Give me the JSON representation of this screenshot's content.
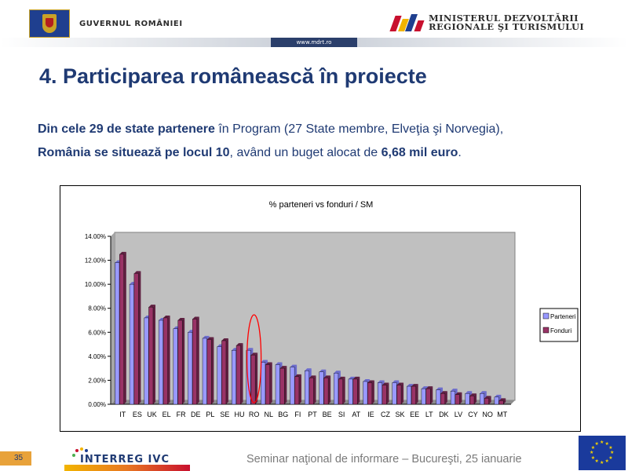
{
  "header": {
    "gov_text": "GUVERNUL ROMÂNIEI",
    "ministry_line1": "MINISTERUL DEZVOLTĂRII",
    "ministry_line2": "REGIONALE ŞI TURISMULUI",
    "url": "www.mdrt.ro"
  },
  "slide": {
    "title": "4. Participarea românească în proiecte",
    "para1_bold": "Din cele 29 de state partenere",
    "para1_rest": " în Program (27 State membre, Elveţia şi Norvegia),",
    "para2_bold1": "România se situează pe locul 10",
    "para2_mid": ", având un buget alocat de ",
    "para2_bold2": "6,68 mil euro",
    "para2_end": "."
  },
  "footer": {
    "page_number": "35",
    "logo_text": "INTERREG IVC",
    "seminar_text": "Seminar naţional de informare – Bucureşti, 25 ianuarie"
  },
  "colors": {
    "title_blue": "#1f3a73",
    "series_parteneri": "#9999ff",
    "series_fonduri": "#993366",
    "plot_bg": "#c0c0c0",
    "highlight_circle": "#ff0000",
    "eu_blue": "#1a3a9c",
    "eu_star": "#f5d300"
  },
  "chart_data": {
    "type": "bar",
    "title": "% parteneri vs fonduri / SM",
    "categories": [
      "IT",
      "ES",
      "UK",
      "EL",
      "FR",
      "DE",
      "PL",
      "SE",
      "HU",
      "RO",
      "NL",
      "BG",
      "FI",
      "PT",
      "BE",
      "SI",
      "AT",
      "IE",
      "CZ",
      "SK",
      "EE",
      "LT",
      "DK",
      "LV",
      "CY",
      "NO",
      "MT"
    ],
    "series": [
      {
        "name": "Parteneri",
        "values": [
          11.8,
          10.0,
          7.2,
          7.0,
          6.3,
          6.0,
          5.5,
          4.8,
          4.5,
          4.5,
          3.5,
          3.3,
          3.1,
          2.8,
          2.7,
          2.6,
          2.1,
          1.9,
          1.8,
          1.8,
          1.5,
          1.3,
          1.2,
          1.1,
          0.9,
          0.9,
          0.6
        ]
      },
      {
        "name": "Fonduri",
        "values": [
          12.5,
          10.9,
          8.1,
          7.2,
          7.0,
          7.1,
          5.4,
          5.3,
          4.9,
          4.1,
          3.3,
          3.0,
          2.3,
          2.2,
          2.2,
          2.1,
          2.1,
          1.8,
          1.6,
          1.6,
          1.5,
          1.3,
          0.9,
          0.8,
          0.7,
          0.5,
          0.3
        ]
      }
    ],
    "ylim": [
      0,
      14
    ],
    "y_ticks": [
      "0.00%",
      "2.00%",
      "4.00%",
      "6.00%",
      "8.00%",
      "10.00%",
      "12.00%",
      "14.00%"
    ],
    "grid": false,
    "legend_position": "right",
    "highlight_category": "RO"
  }
}
